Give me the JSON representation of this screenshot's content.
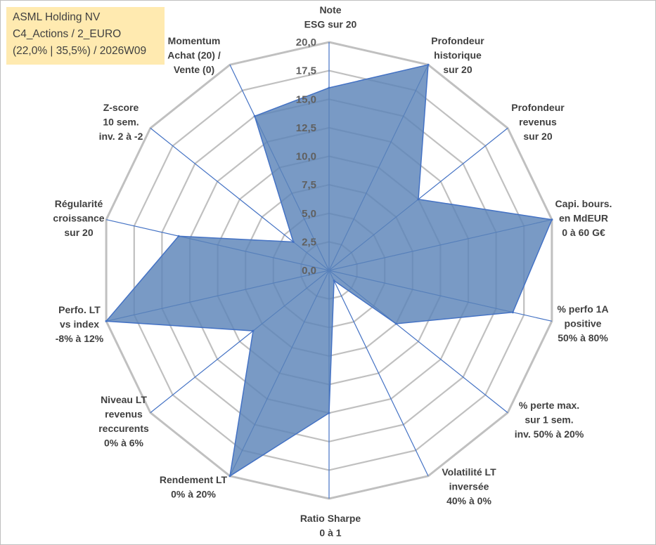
{
  "info_box": {
    "line1": "ASML Holding NV",
    "line2": "C4_Actions / 2_EURO",
    "line3": "(22,0% | 35,5%) / 2026W09"
  },
  "chart_data": {
    "type": "radar",
    "r_min": 0,
    "r_max": 20,
    "tick_step": 2.5,
    "tick_labels": [
      "0,0",
      "2,5",
      "5,0",
      "7,5",
      "10,0",
      "12,5",
      "15,0",
      "17,5",
      "20,0"
    ],
    "grid": true,
    "colors": {
      "fill": "#5b84b8",
      "line": "#4472c4",
      "grid": "#c0c0c0",
      "spoke": "#4472c4"
    },
    "axes": [
      {
        "label": [
          "Note",
          "ESG sur 20"
        ],
        "value": 16.0
      },
      {
        "label": [
          "Profondeur",
          "historique",
          "sur 20"
        ],
        "value": 20.0
      },
      {
        "label": [
          "Profondeur",
          "revenus",
          "sur 20"
        ],
        "value": 10.0
      },
      {
        "label": [
          "Capi. bours.",
          "en MdEUR",
          "0 à 60 G€"
        ],
        "value": 20.0
      },
      {
        "label": [
          "% perfo 1A",
          "positive",
          "50% à 80%"
        ],
        "value": 16.5
      },
      {
        "label": [
          "% perte max.",
          "sur 1 sem.",
          "inv. 50% à 20%"
        ],
        "value": 7.5
      },
      {
        "label": [
          "Volatilité LT",
          "inversée",
          "40% à 0%"
        ],
        "value": 1.0
      },
      {
        "label": [
          "Ratio Sharpe",
          "0 à 1"
        ],
        "value": 12.5
      },
      {
        "label": [
          "Rendement LT",
          "0% à 20%"
        ],
        "value": 20.0
      },
      {
        "label": [
          "Niveau LT",
          "revenus",
          "reccurents",
          "0% à 6%"
        ],
        "value": 8.5
      },
      {
        "label": [
          "Perfo. LT",
          "vs index",
          "-8% à 12%"
        ],
        "value": 20.0
      },
      {
        "label": [
          "Régularité",
          "croissance",
          "sur 20"
        ],
        "value": 13.5
      },
      {
        "label": [
          "Z-score",
          "10 sem.",
          "inv. 2 à -2"
        ],
        "value": 4.0
      },
      {
        "label": [
          "Momentum",
          "Achat (20) /",
          "Vente (0)"
        ],
        "value": 15.0
      }
    ]
  }
}
